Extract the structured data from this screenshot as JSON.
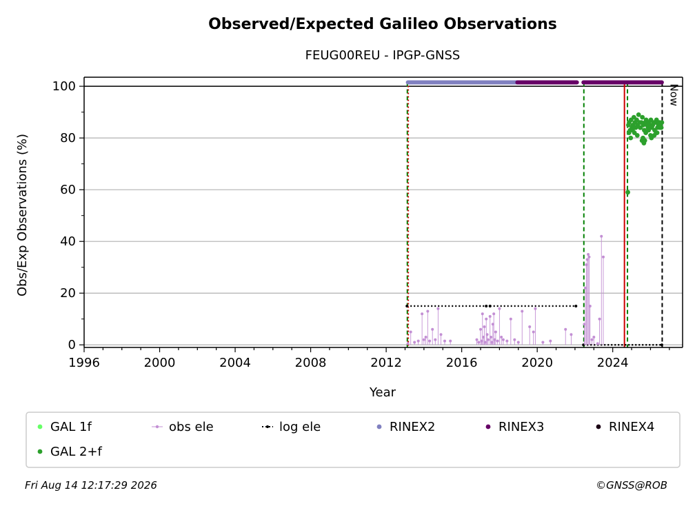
{
  "chart_data": {
    "type": "scatter",
    "title": "Observed/Expected Galileo Observations",
    "subtitle": "FEUG00REU - IPGP-GNSS",
    "xlabel": "Year",
    "ylabel": "Obs/Exp Observations (%)",
    "xlim": [
      1996,
      2027.7
    ],
    "ylim": [
      -1,
      103.5
    ],
    "x_ticks": [
      1996,
      2000,
      2004,
      2008,
      2012,
      2016,
      2020,
      2024
    ],
    "y_ticks": [
      0,
      20,
      40,
      60,
      80,
      100
    ],
    "grid": "horizontal",
    "now_label": "Now",
    "now_year": 2026.62,
    "legend_position": "bottom",
    "legend": [
      {
        "label": "GAL 1f",
        "color": "#66ff66",
        "marker": "dot"
      },
      {
        "label": "obs ele",
        "color": "#c38fd4",
        "marker": "line-dot"
      },
      {
        "label": "log ele",
        "color": "#000000",
        "marker": "dotted-line"
      },
      {
        "label": "RINEX2",
        "color": "#8080c0",
        "marker": "dot"
      },
      {
        "label": "RINEX3",
        "color": "#660066",
        "marker": "dot"
      },
      {
        "label": "RINEX4",
        "color": "#1a0014",
        "marker": "dot"
      },
      {
        "label": "GAL 2+f",
        "color": "#2ca02c",
        "marker": "dot"
      }
    ],
    "vertical_lines": [
      {
        "x": 2013.12,
        "color": "#008000",
        "style": "dashed"
      },
      {
        "x": 2013.17,
        "color": "#cc0000",
        "style": "dotted"
      },
      {
        "x": 2022.47,
        "color": "#008000",
        "style": "dashed"
      },
      {
        "x": 2024.62,
        "color": "#cc0000",
        "style": "solid"
      },
      {
        "x": 2024.78,
        "color": "#008000",
        "style": "dashed"
      },
      {
        "x": 2026.62,
        "color": "#000000",
        "style": "dashed"
      }
    ],
    "rinex_bands": [
      {
        "name": "RINEX2",
        "x_start": 2013.15,
        "x_end": 2018.95,
        "y": 101.5,
        "color": "#8080c0"
      },
      {
        "name": "RINEX3",
        "x_start": 2018.95,
        "x_end": 2022.1,
        "y": 101.5,
        "color": "#660066"
      },
      {
        "name": "RINEX3",
        "x_start": 2022.45,
        "x_end": 2026.6,
        "y": 101.5,
        "color": "#660066"
      }
    ],
    "log_ele": [
      {
        "x_start": 2013.1,
        "x_end": 2017.3,
        "y": 15
      },
      {
        "x_start": 2017.5,
        "x_end": 2022.05,
        "y": 15
      },
      {
        "x_start": 2022.45,
        "x_end": 2026.6,
        "y": 0
      }
    ],
    "obs_ele": {
      "x": [
        2013.15,
        2013.3,
        2013.5,
        2013.7,
        2013.9,
        2014.0,
        2014.1,
        2014.2,
        2014.3,
        2014.45,
        2014.6,
        2014.75,
        2014.9,
        2015.1,
        2015.4,
        2016.8,
        2016.9,
        2017.0,
        2017.05,
        2017.1,
        2017.15,
        2017.2,
        2017.25,
        2017.3,
        2017.35,
        2017.4,
        2017.5,
        2017.55,
        2017.6,
        2017.65,
        2017.7,
        2017.75,
        2017.8,
        2017.9,
        2018.0,
        2018.1,
        2018.2,
        2018.4,
        2018.6,
        2018.8,
        2019.0,
        2019.2,
        2019.6,
        2019.8,
        2019.9,
        2020.3,
        2020.7,
        2021.5,
        2021.8,
        2022.5,
        2022.55,
        2022.6,
        2022.65,
        2022.7,
        2022.75,
        2022.8,
        2022.9,
        2023.0,
        2023.2,
        2023.3,
        2023.4,
        2023.5
      ],
      "y": [
        0.5,
        5,
        1,
        1.5,
        12,
        2,
        3,
        13,
        1.5,
        6,
        2,
        14,
        4,
        1.5,
        1.5,
        2,
        1,
        6,
        1.5,
        12,
        3,
        7,
        1,
        10,
        4,
        2,
        11,
        3,
        1,
        8,
        12,
        2,
        5,
        1.5,
        14,
        3,
        2,
        1.5,
        10,
        2,
        1,
        13,
        7,
        5,
        14,
        1,
        1.5,
        6,
        4,
        8,
        22,
        31,
        33,
        35,
        34,
        15,
        2,
        3,
        0.5,
        10,
        42,
        34
      ]
    },
    "gal_2f": {
      "x": [
        2024.8,
        2024.83,
        2024.87,
        2024.92,
        2024.97,
        2025.02,
        2025.07,
        2025.12,
        2025.17,
        2025.22,
        2025.27,
        2025.32,
        2025.37,
        2025.42,
        2025.47,
        2025.52,
        2025.57,
        2025.62,
        2025.67,
        2025.72,
        2025.77,
        2025.82,
        2025.87,
        2025.92,
        2025.97,
        2026.02,
        2026.07,
        2026.12,
        2026.17,
        2026.22,
        2026.27,
        2026.32,
        2026.37,
        2026.42,
        2026.47,
        2026.52,
        2026.57,
        2026.6,
        2024.86,
        2024.95,
        2025.05,
        2025.15,
        2025.3,
        2025.45,
        2025.55,
        2025.65,
        2025.75,
        2025.9,
        2026.05,
        2026.2,
        2026.35,
        2026.5,
        2025.6,
        2025.7,
        2026.0,
        2026.3
      ],
      "y": [
        59,
        85,
        86,
        83,
        87,
        84,
        85,
        88,
        86,
        84,
        87,
        85,
        89,
        86,
        84,
        86,
        88,
        85,
        83,
        86,
        87,
        85,
        84,
        86,
        85,
        87,
        84,
        85,
        86,
        83,
        86,
        87,
        84,
        85,
        86,
        85,
        84,
        86,
        82,
        80,
        83,
        82,
        81,
        84,
        79,
        78,
        82,
        83,
        80,
        81,
        82,
        84,
        80,
        79,
        81,
        82
      ]
    }
  },
  "footer": {
    "timestamp": "Fri Aug 14 12:17:29 2026",
    "copyright": "©GNSS@ROB"
  }
}
